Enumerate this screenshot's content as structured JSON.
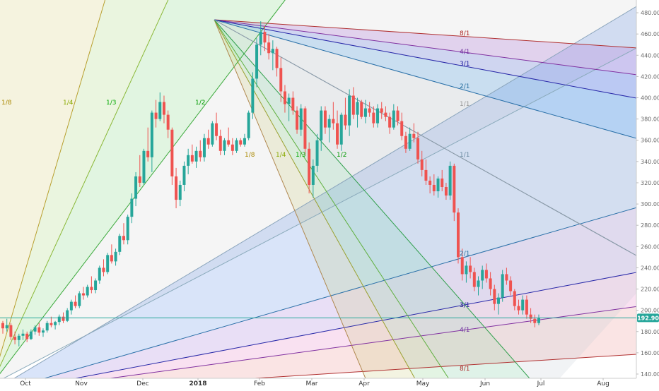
{
  "chart_data": {
    "type": "candlestick",
    "y_axis": {
      "side": "right",
      "ylim": [
        136,
        492
      ],
      "ticks": [
        140,
        160,
        180,
        200,
        220,
        240,
        260,
        280,
        300,
        320,
        340,
        360,
        380,
        400,
        420,
        440,
        460,
        480
      ]
    },
    "x_axis": {
      "tick_labels": [
        "Oct",
        "Nov",
        "Dec",
        "2018",
        "Feb",
        "Mar",
        "Apr",
        "May",
        "Jun",
        "Jul",
        "Aug"
      ]
    },
    "last_price": {
      "label": "192.90",
      "value": 192.9
    },
    "ohlc": [
      [
        188,
        190,
        178,
        183
      ],
      [
        183,
        192,
        180,
        186
      ],
      [
        186,
        188,
        172,
        175
      ],
      [
        175,
        180,
        168,
        172
      ],
      [
        172,
        178,
        166,
        176
      ],
      [
        176,
        182,
        172,
        178
      ],
      [
        178,
        180,
        170,
        173
      ],
      [
        173,
        182,
        172,
        180
      ],
      [
        180,
        186,
        177,
        184
      ],
      [
        184,
        188,
        176,
        179
      ],
      [
        179,
        183,
        175,
        181
      ],
      [
        181,
        190,
        179,
        188
      ],
      [
        188,
        194,
        184,
        186
      ],
      [
        186,
        190,
        182,
        189
      ],
      [
        189,
        196,
        186,
        194
      ],
      [
        194,
        198,
        188,
        190
      ],
      [
        190,
        202,
        189,
        200
      ],
      [
        200,
        210,
        196,
        208
      ],
      [
        208,
        214,
        202,
        204
      ],
      [
        204,
        218,
        202,
        216
      ],
      [
        216,
        222,
        210,
        214
      ],
      [
        214,
        224,
        212,
        222
      ],
      [
        222,
        232,
        216,
        219
      ],
      [
        219,
        230,
        216,
        228
      ],
      [
        228,
        242,
        225,
        240
      ],
      [
        240,
        248,
        232,
        236
      ],
      [
        236,
        254,
        234,
        252
      ],
      [
        252,
        262,
        244,
        246
      ],
      [
        246,
        258,
        242,
        255
      ],
      [
        255,
        272,
        252,
        270
      ],
      [
        270,
        282,
        262,
        266
      ],
      [
        266,
        290,
        262,
        288
      ],
      [
        288,
        310,
        282,
        305
      ],
      [
        305,
        330,
        298,
        326
      ],
      [
        326,
        346,
        316,
        320
      ],
      [
        320,
        352,
        318,
        350
      ],
      [
        350,
        372,
        340,
        344
      ],
      [
        344,
        388,
        330,
        386
      ],
      [
        386,
        398,
        372,
        380
      ],
      [
        380,
        405,
        378,
        396
      ],
      [
        396,
        402,
        376,
        384
      ],
      [
        384,
        388,
        362,
        370
      ],
      [
        370,
        372,
        318,
        326
      ],
      [
        326,
        334,
        296,
        304
      ],
      [
        304,
        322,
        298,
        318
      ],
      [
        318,
        340,
        312,
        336
      ],
      [
        336,
        352,
        328,
        346
      ],
      [
        346,
        356,
        338,
        340
      ],
      [
        340,
        354,
        334,
        350
      ],
      [
        350,
        360,
        340,
        344
      ],
      [
        344,
        366,
        340,
        362
      ],
      [
        362,
        370,
        352,
        356
      ],
      [
        356,
        378,
        354,
        376
      ],
      [
        376,
        386,
        360,
        364
      ],
      [
        364,
        370,
        346,
        350
      ],
      [
        350,
        362,
        346,
        360
      ],
      [
        360,
        372,
        354,
        356
      ],
      [
        356,
        362,
        346,
        350
      ],
      [
        350,
        362,
        348,
        360
      ],
      [
        360,
        362,
        354,
        356
      ],
      [
        356,
        366,
        354,
        362
      ],
      [
        362,
        388,
        360,
        386
      ],
      [
        386,
        424,
        380,
        418
      ],
      [
        418,
        456,
        410,
        450
      ],
      [
        450,
        472,
        440,
        462
      ],
      [
        462,
        468,
        444,
        452
      ],
      [
        452,
        460,
        436,
        442
      ],
      [
        442,
        454,
        426,
        446
      ],
      [
        446,
        448,
        420,
        428
      ],
      [
        428,
        438,
        396,
        406
      ],
      [
        406,
        412,
        386,
        394
      ],
      [
        394,
        404,
        378,
        400
      ],
      [
        400,
        406,
        384,
        388
      ],
      [
        388,
        392,
        366,
        370
      ],
      [
        370,
        394,
        364,
        390
      ],
      [
        390,
        392,
        346,
        352
      ],
      [
        352,
        358,
        310,
        318
      ],
      [
        318,
        342,
        306,
        336
      ],
      [
        336,
        366,
        330,
        360
      ],
      [
        360,
        392,
        350,
        388
      ],
      [
        388,
        392,
        366,
        372
      ],
      [
        372,
        384,
        358,
        380
      ],
      [
        380,
        396,
        370,
        376
      ],
      [
        376,
        388,
        352,
        356
      ],
      [
        356,
        386,
        350,
        384
      ],
      [
        384,
        400,
        370,
        374
      ],
      [
        374,
        408,
        364,
        402
      ],
      [
        402,
        410,
        380,
        384
      ],
      [
        384,
        400,
        372,
        396
      ],
      [
        396,
        398,
        380,
        382
      ],
      [
        382,
        398,
        376,
        390
      ],
      [
        390,
        396,
        382,
        386
      ],
      [
        386,
        392,
        372,
        376
      ],
      [
        376,
        394,
        372,
        390
      ],
      [
        390,
        396,
        380,
        386
      ],
      [
        386,
        392,
        378,
        382
      ],
      [
        382,
        386,
        366,
        372
      ],
      [
        372,
        394,
        370,
        388
      ],
      [
        388,
        392,
        374,
        378
      ],
      [
        378,
        386,
        360,
        364
      ],
      [
        364,
        368,
        348,
        352
      ],
      [
        352,
        372,
        350,
        366
      ],
      [
        366,
        376,
        358,
        362
      ],
      [
        362,
        368,
        338,
        342
      ],
      [
        342,
        350,
        326,
        332
      ],
      [
        332,
        342,
        318,
        322
      ],
      [
        322,
        326,
        310,
        318
      ],
      [
        318,
        328,
        308,
        312
      ],
      [
        312,
        326,
        306,
        324
      ],
      [
        324,
        332,
        312,
        316
      ],
      [
        316,
        320,
        304,
        308
      ],
      [
        308,
        340,
        304,
        336
      ],
      [
        336,
        338,
        284,
        292
      ],
      [
        292,
        296,
        244,
        250
      ],
      [
        250,
        258,
        228,
        234
      ],
      [
        234,
        246,
        226,
        242
      ],
      [
        242,
        250,
        230,
        236
      ],
      [
        236,
        240,
        218,
        222
      ],
      [
        222,
        232,
        214,
        228
      ],
      [
        228,
        242,
        220,
        238
      ],
      [
        238,
        244,
        226,
        230
      ],
      [
        230,
        236,
        214,
        220
      ],
      [
        220,
        224,
        200,
        206
      ],
      [
        206,
        216,
        196,
        212
      ],
      [
        212,
        238,
        208,
        234
      ],
      [
        234,
        240,
        224,
        228
      ],
      [
        228,
        232,
        214,
        218
      ],
      [
        218,
        220,
        200,
        204
      ],
      [
        204,
        210,
        196,
        200
      ],
      [
        200,
        214,
        196,
        210
      ],
      [
        210,
        214,
        192,
        196
      ],
      [
        196,
        202,
        188,
        192
      ],
      [
        192,
        196,
        184,
        188
      ],
      [
        188,
        196,
        186,
        193
      ]
    ],
    "fan_labels": [
      {
        "text": "1/8",
        "color": "#aa8800"
      },
      {
        "text": "1/4",
        "color": "#88aa00"
      },
      {
        "text": "1/3",
        "color": "#00aa00"
      },
      {
        "text": "1/2",
        "color": "#009900"
      },
      {
        "text": "1/8",
        "color": "#aa8800"
      },
      {
        "text": "1/4",
        "color": "#88aa00"
      },
      {
        "text": "1/3",
        "color": "#00aa00"
      },
      {
        "text": "1/2",
        "color": "#009900"
      },
      {
        "text": "1/1",
        "color": "#999999"
      },
      {
        "text": "1/1",
        "color": "#6a8aa0"
      },
      {
        "text": "2/1",
        "color": "#2a70a0"
      },
      {
        "text": "3/1",
        "color": "#2020a0"
      },
      {
        "text": "4/1",
        "color": "#7030a0"
      },
      {
        "text": "8/1",
        "color": "#aa2020"
      },
      {
        "text": "1/1",
        "color": "#999999"
      },
      {
        "text": "2/1",
        "color": "#2a70a0"
      },
      {
        "text": "3/1",
        "color": "#2020a0"
      },
      {
        "text": "4/1",
        "color": "#7030a0"
      },
      {
        "text": "8/1",
        "color": "#aa2020"
      }
    ],
    "colors": {
      "up": "#26a69a",
      "down": "#ef5350",
      "price_line": "#26a69a"
    }
  }
}
